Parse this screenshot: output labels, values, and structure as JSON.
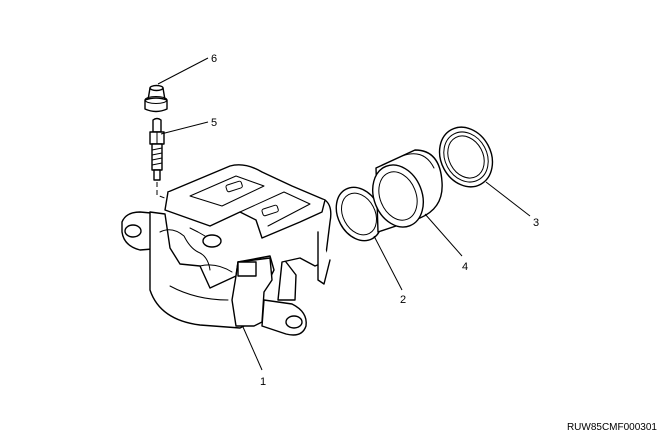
{
  "figure": {
    "callouts": [
      {
        "id": "1",
        "label": "1"
      },
      {
        "id": "2",
        "label": "2"
      },
      {
        "id": "3",
        "label": "3"
      },
      {
        "id": "4",
        "label": "4"
      },
      {
        "id": "5",
        "label": "5"
      },
      {
        "id": "6",
        "label": "6"
      }
    ],
    "reference_code": "RUW85CMF000301"
  }
}
